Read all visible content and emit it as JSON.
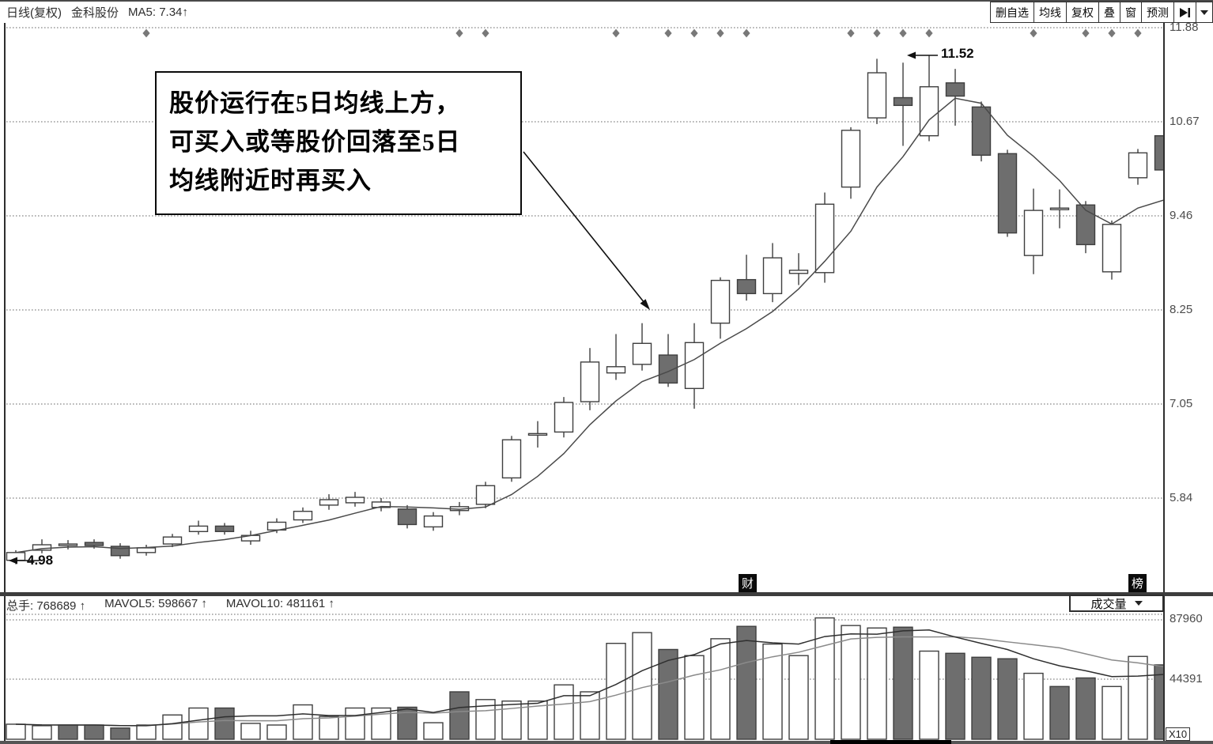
{
  "header": {
    "period": "日线(复权)",
    "stock": "金科股份",
    "ma_value": "MA5: 7.34",
    "up_arrow": "↑"
  },
  "toolbar": {
    "buttons": [
      "删自选",
      "均线",
      "复权",
      "叠",
      "窗",
      "预测"
    ]
  },
  "annotation": {
    "line1": "股价运行在5日均线上方，",
    "line2": "可买入或等股价回落至5日",
    "line3": "均线附近时再买入"
  },
  "price_labels": {
    "high": "11.52",
    "low": "4.98"
  },
  "event_markers": {
    "left": "财",
    "right": "榜"
  },
  "volume_header": {
    "total": "总手: 768689",
    "mavol5": "MAVOL5: 598667",
    "mavol10": "MAVOL10: 481161",
    "up_arrow": "↑"
  },
  "volume_selector": {
    "label": "成交量"
  },
  "axes": {
    "price_ticks": [
      "11.88",
      "10.67",
      "9.46",
      "8.25",
      "7.05",
      "5.84"
    ],
    "volume_ticks": [
      "87960",
      "44391"
    ],
    "volume_unit": "X10"
  },
  "colors": {
    "down_fill": "#6e6e6e",
    "outline": "#3f3f3f",
    "ma5": "#4a4a4a",
    "mavol5": "#2f2f2f",
    "mavol10": "#8a8a8a",
    "grid": "#6a6a6a"
  },
  "chart_data": {
    "type": "candlestick",
    "instrument": "金科股份",
    "period": "日线(复权)",
    "title": "金科股份 日线(复权) K线图",
    "y_axis_ticks": [
      11.88,
      10.67,
      9.46,
      8.25,
      7.05,
      5.84
    ],
    "volume_axis_ticks": [
      87960,
      44391
    ],
    "volume_unit": "X10",
    "marked_high": 11.52,
    "marked_low": 4.98,
    "overlays": [
      "MA5"
    ],
    "volume_overlays": [
      "MAVOL5",
      "MAVOL10"
    ],
    "legend_position": "top-left",
    "grid": "dotted-horizontal",
    "candles": [
      [
        5.03,
        5.16,
        4.98,
        5.13,
        "w"
      ],
      [
        5.16,
        5.3,
        5.12,
        5.23,
        "w"
      ],
      [
        5.22,
        5.29,
        5.17,
        5.24,
        "w"
      ],
      [
        5.26,
        5.3,
        5.18,
        5.22,
        "g"
      ],
      [
        5.21,
        5.25,
        5.05,
        5.09,
        "g"
      ],
      [
        5.13,
        5.23,
        5.09,
        5.19,
        "w"
      ],
      [
        5.24,
        5.37,
        5.2,
        5.33,
        "w"
      ],
      [
        5.4,
        5.54,
        5.36,
        5.47,
        "w"
      ],
      [
        5.47,
        5.51,
        5.36,
        5.4,
        "g"
      ],
      [
        5.28,
        5.41,
        5.23,
        5.35,
        "w"
      ],
      [
        5.42,
        5.57,
        5.38,
        5.52,
        "w"
      ],
      [
        5.55,
        5.71,
        5.51,
        5.66,
        "w"
      ],
      [
        5.74,
        5.88,
        5.68,
        5.81,
        "w"
      ],
      [
        5.77,
        5.91,
        5.72,
        5.84,
        "w"
      ],
      [
        5.71,
        5.83,
        5.66,
        5.78,
        "w"
      ],
      [
        5.69,
        5.74,
        5.44,
        5.49,
        "g"
      ],
      [
        5.46,
        5.65,
        5.41,
        5.6,
        "w"
      ],
      [
        5.67,
        5.78,
        5.61,
        5.72,
        "w"
      ],
      [
        5.75,
        6.04,
        5.7,
        5.99,
        "w"
      ],
      [
        6.09,
        6.63,
        6.04,
        6.58,
        "w"
      ],
      [
        6.64,
        6.82,
        6.48,
        6.66,
        "w"
      ],
      [
        6.68,
        7.13,
        6.61,
        7.06,
        "w"
      ],
      [
        7.07,
        7.76,
        6.96,
        7.58,
        "w"
      ],
      [
        7.44,
        7.94,
        7.35,
        7.52,
        "w"
      ],
      [
        7.55,
        8.08,
        7.47,
        7.82,
        "w"
      ],
      [
        7.67,
        7.94,
        7.26,
        7.31,
        "g"
      ],
      [
        7.24,
        8.08,
        6.98,
        7.83,
        "w"
      ],
      [
        8.08,
        8.67,
        7.88,
        8.63,
        "w"
      ],
      [
        8.64,
        8.96,
        8.37,
        8.46,
        "g"
      ],
      [
        8.46,
        9.11,
        8.35,
        8.92,
        "w"
      ],
      [
        8.72,
        8.98,
        8.57,
        8.76,
        "w"
      ],
      [
        8.73,
        9.76,
        8.6,
        9.61,
        "w"
      ],
      [
        9.83,
        10.6,
        9.68,
        10.56,
        "w"
      ],
      [
        10.72,
        11.48,
        10.64,
        11.3,
        "w"
      ],
      [
        10.98,
        11.43,
        10.36,
        10.88,
        "g"
      ],
      [
        10.49,
        11.52,
        10.42,
        11.12,
        "w"
      ],
      [
        11.17,
        11.35,
        10.62,
        11.0,
        "g"
      ],
      [
        10.86,
        10.93,
        10.16,
        10.24,
        "g"
      ],
      [
        10.26,
        10.31,
        9.19,
        9.24,
        "g"
      ],
      [
        8.95,
        9.81,
        8.71,
        9.53,
        "w"
      ],
      [
        9.54,
        9.8,
        9.3,
        9.56,
        "w"
      ],
      [
        9.6,
        9.65,
        8.98,
        9.09,
        "g"
      ],
      [
        8.74,
        9.4,
        8.64,
        9.35,
        "w"
      ],
      [
        9.95,
        10.32,
        9.86,
        10.27,
        "w"
      ],
      [
        10.49,
        10.54,
        9.95,
        10.05,
        "g"
      ]
    ],
    "volumes": [
      [
        11300,
        "w"
      ],
      [
        10200,
        "w"
      ],
      [
        10700,
        "g"
      ],
      [
        10700,
        "g"
      ],
      [
        8500,
        "g"
      ],
      [
        10700,
        "w"
      ],
      [
        18100,
        "w"
      ],
      [
        23200,
        "w"
      ],
      [
        23200,
        "g"
      ],
      [
        11900,
        "w"
      ],
      [
        10700,
        "w"
      ],
      [
        25500,
        "w"
      ],
      [
        17000,
        "w"
      ],
      [
        23200,
        "w"
      ],
      [
        23200,
        "w"
      ],
      [
        23800,
        "g"
      ],
      [
        12400,
        "w"
      ],
      [
        35100,
        "g"
      ],
      [
        29400,
        "w"
      ],
      [
        28300,
        "w"
      ],
      [
        28300,
        "w"
      ],
      [
        40200,
        "w"
      ],
      [
        35100,
        "w"
      ],
      [
        70700,
        "w"
      ],
      [
        78600,
        "w"
      ],
      [
        66200,
        "g"
      ],
      [
        61700,
        "w"
      ],
      [
        74100,
        "w"
      ],
      [
        83200,
        "g"
      ],
      [
        70200,
        "w"
      ],
      [
        61700,
        "w"
      ],
      [
        89400,
        "w"
      ],
      [
        83800,
        "w"
      ],
      [
        82000,
        "w"
      ],
      [
        82600,
        "g"
      ],
      [
        65000,
        "w"
      ],
      [
        63400,
        "g"
      ],
      [
        60500,
        "g"
      ],
      [
        59400,
        "g"
      ],
      [
        48700,
        "w"
      ],
      [
        39000,
        "g"
      ],
      [
        45300,
        "g"
      ],
      [
        39000,
        "w"
      ],
      [
        61100,
        "w"
      ],
      [
        54900,
        "g"
      ]
    ],
    "marker_indices": [
      5,
      17,
      18,
      23,
      25,
      26,
      27,
      28,
      32,
      33,
      34,
      35,
      39,
      41,
      42,
      43
    ]
  }
}
